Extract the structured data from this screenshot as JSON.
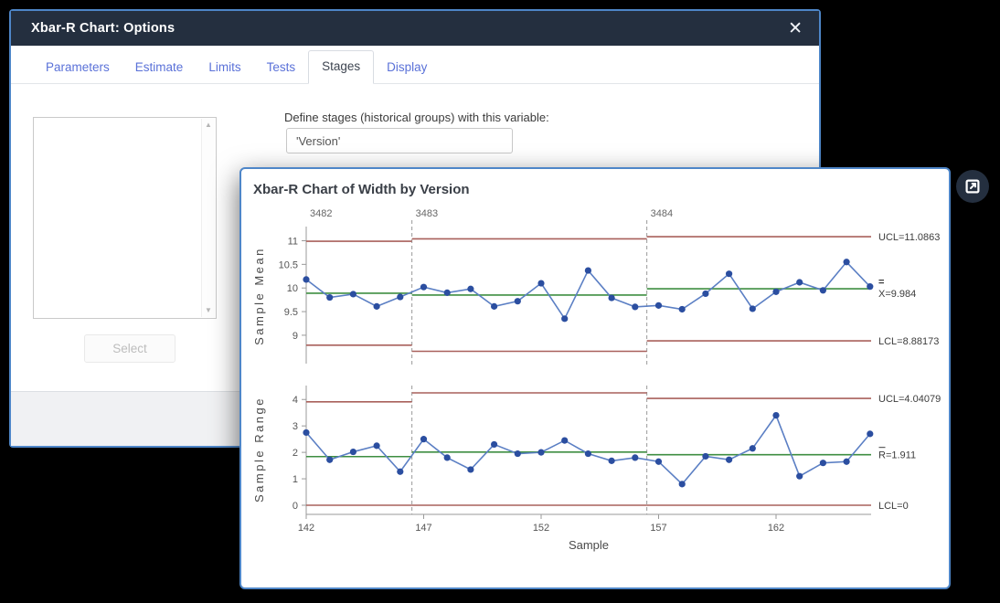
{
  "dialog": {
    "title": "Xbar-R Chart: Options",
    "close_icon": "✕",
    "tabs": [
      {
        "label": "Parameters",
        "active": false
      },
      {
        "label": "Estimate",
        "active": false
      },
      {
        "label": "Limits",
        "active": false
      },
      {
        "label": "Tests",
        "active": false
      },
      {
        "label": "Stages",
        "active": true
      },
      {
        "label": "Display",
        "active": false
      }
    ],
    "stages_tab": {
      "define_label": "Define stages (historical groups) with this variable:",
      "variable_value": "'Version'",
      "select_button_label": "Select",
      "scroll_up_icon": "▲",
      "scroll_down_icon": "▼"
    }
  },
  "chart_window": {
    "title": "Xbar-R Chart of Width by Version"
  },
  "colors": {
    "accent_blue_border": "#4e86c8",
    "titlebar": "#242f3f",
    "tab_link": "#5a71d8",
    "limit_line_red": "#a9605b",
    "center_line_green": "#3e8e41",
    "series_line_blue": "#5b7fc4",
    "marker_blue": "#2b4ea0",
    "stage_separator_gray": "#999999"
  },
  "chart_data": {
    "type": "line",
    "title": "Xbar-R Chart of Width by Version",
    "xlabel": "Sample",
    "x_start": 142,
    "x_end": 166,
    "xticks": [
      142,
      147,
      152,
      157,
      162
    ],
    "grid": false,
    "stages": [
      {
        "label": "3482",
        "first_sample": 142,
        "last_sample": 146
      },
      {
        "label": "3483",
        "first_sample": 147,
        "last_sample": 156
      },
      {
        "label": "3484",
        "first_sample": 157,
        "last_sample": 166
      }
    ],
    "panels": [
      {
        "ylabel": "Sample Mean",
        "yticks": [
          9,
          9.5,
          10,
          10.5,
          11
        ],
        "ylim": [
          8.6,
          11.2
        ],
        "values": [
          10.18,
          9.8,
          9.87,
          9.61,
          9.81,
          10.02,
          9.9,
          9.98,
          9.61,
          9.72,
          10.1,
          9.35,
          10.37,
          9.79,
          9.6,
          9.63,
          9.55,
          9.88,
          10.3,
          9.56,
          9.92,
          10.12,
          9.95,
          10.55,
          10.03
        ],
        "stage_limits": [
          {
            "ucl": 10.99,
            "cl": 9.89,
            "lcl": 8.79
          },
          {
            "ucl": 11.04,
            "cl": 9.85,
            "lcl": 8.66
          },
          {
            "ucl": 11.0863,
            "cl": 9.984,
            "lcl": 8.88173
          }
        ],
        "right_labels": {
          "ucl": "UCL=11.0863",
          "cl": "X=9.984",
          "cl_overline": "=",
          "lcl": "LCL=8.88173"
        }
      },
      {
        "ylabel": "Sample Range",
        "yticks": [
          0,
          1,
          2,
          3,
          4
        ],
        "ylim": [
          -0.2,
          4.5
        ],
        "values": [
          2.75,
          1.72,
          2.02,
          2.25,
          1.27,
          2.5,
          1.8,
          1.35,
          2.3,
          1.95,
          2.0,
          2.45,
          1.95,
          1.68,
          1.8,
          1.65,
          0.8,
          1.85,
          1.72,
          2.15,
          3.4,
          1.1,
          1.6,
          1.65,
          2.7
        ],
        "stage_limits": [
          {
            "ucl": 3.91,
            "cl": 1.84,
            "lcl": 0
          },
          {
            "ucl": 4.25,
            "cl": 2.01,
            "lcl": 0
          },
          {
            "ucl": 4.04079,
            "cl": 1.911,
            "lcl": 0
          }
        ],
        "right_labels": {
          "ucl": "UCL=4.04079",
          "cl": "R=1.911",
          "cl_overline": "‾",
          "lcl": "LCL=0"
        }
      }
    ]
  }
}
